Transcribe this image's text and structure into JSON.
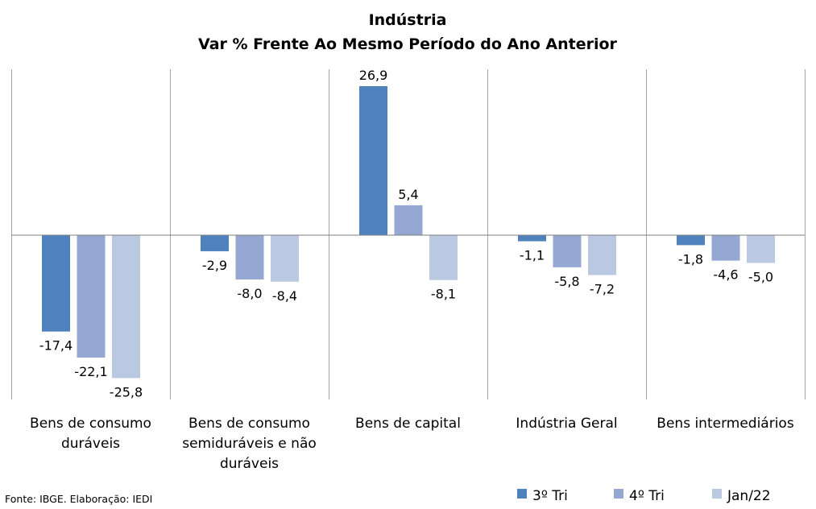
{
  "chart_data": {
    "type": "bar",
    "title": "Indústria",
    "subtitle": "Var % Frente Ao Mesmo Período do Ano Anterior",
    "categories": [
      [
        "Bens de consumo",
        "duráveis"
      ],
      [
        "Bens de consumo",
        "semiduráveis e não",
        "duráveis"
      ],
      [
        "Bens de capital"
      ],
      [
        "Indústria Geral"
      ],
      [
        "Bens intermediários"
      ]
    ],
    "series": [
      {
        "name": "3º Tri",
        "color": "#4f81bd",
        "values": [
          -17.4,
          -2.9,
          26.9,
          -1.1,
          -1.8
        ],
        "labels": [
          "-17,4",
          "-2,9",
          "26,9",
          "-1,1",
          "-1,8"
        ]
      },
      {
        "name": "4º Tri",
        "color": "#95a8d2",
        "values": [
          -22.1,
          -8.0,
          5.4,
          -5.8,
          -4.6
        ],
        "labels": [
          "-22,1",
          "-8,0",
          "5,4",
          "-5,8",
          "-4,6"
        ]
      },
      {
        "name": "Jan/22",
        "color": "#bac8e2",
        "values": [
          -25.8,
          -8.4,
          -8.1,
          -7.2,
          -5.0
        ],
        "labels": [
          "-25,8",
          "-8,4",
          "-8,1",
          "-7,2",
          "-5,0"
        ]
      }
    ],
    "ylim": [
      -30,
      30
    ],
    "grid": false,
    "legend": "bottom-right"
  },
  "source": "Fonte: IBGE. Elaboração: IEDI"
}
